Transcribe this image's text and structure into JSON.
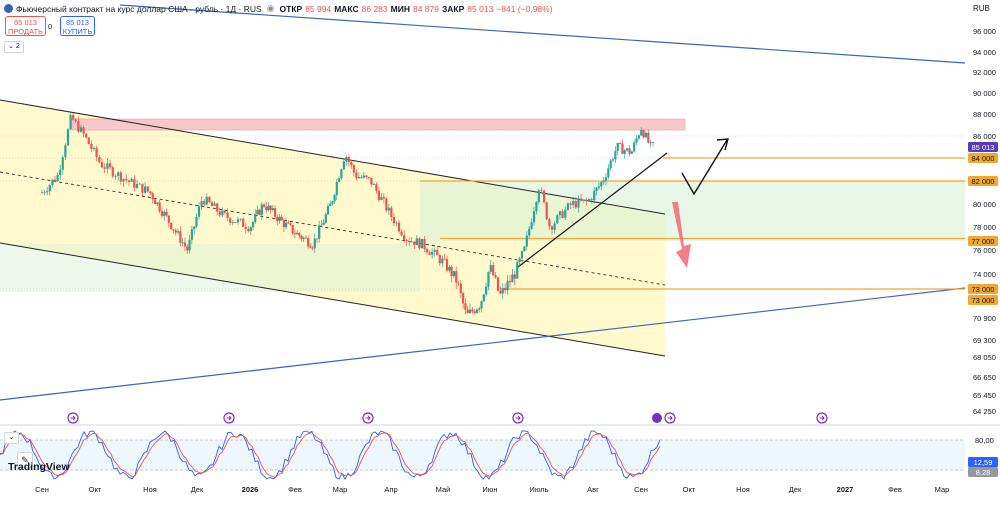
{
  "legend": {
    "title": "Фьючерсный контракт на курс доллар США - рубль · 1Д · RUS",
    "open_label": "ОТКР",
    "open": "85 994",
    "high_label": "МАКС",
    "high": "86 283",
    "low_label": "МИН",
    "low": "84 879",
    "close_label": "ЗАКР",
    "close": "85 013",
    "change": "−841 (−0,98%)"
  },
  "trade": {
    "sell_price": "85 013",
    "sell_label": "ПРОДАТЬ",
    "spread": "0",
    "buy_price": "85 013",
    "buy_label": "КУПИТЬ"
  },
  "indicator_count": "2",
  "currency": "RUB",
  "logo": "TradingView",
  "colors": {
    "up": "#26a69a",
    "down": "#ef5350",
    "channel_fill": "#fff8c4",
    "channel_green": "#d9f0d6",
    "resistance_zone": "#f8c7c9",
    "level": "#f0a830",
    "trendline_blue": "#3a65b6",
    "current_price": "#5b3bb5",
    "stoch_k": "#2962ff",
    "stoch_d": "#ef5350"
  },
  "chart_data": {
    "type": "candlestick",
    "price_axis": {
      "ticks": [
        "96 000",
        "94 000",
        "92 000",
        "90 000",
        "88 000",
        "86 000",
        "84 000",
        "82 000",
        "80 000",
        "78 000",
        "76 000",
        "74 000",
        "73 000",
        "70 900",
        "69 300",
        "68 050",
        "66 650",
        "65 450",
        "64 250"
      ],
      "current_price_label": "85 013",
      "level_labels": [
        "84 000",
        "82 000",
        "77 000",
        "73 000",
        "73 000"
      ]
    },
    "time_axis": {
      "labels": [
        "Сен",
        "Окт",
        "Ноя",
        "Дек",
        "2026",
        "Фев",
        "Мар",
        "Апр",
        "Май",
        "Июн",
        "Июль",
        "Авг",
        "Сен",
        "Окт",
        "Ноя",
        "Дек",
        "2027",
        "Фев",
        "Мар"
      ]
    },
    "oscillator": {
      "levels": [
        "80,00",
        "20,00"
      ],
      "values": [
        "12,59",
        "8,28"
      ]
    },
    "price_path": [
      {
        "month": "Сен 2025",
        "close": 81000
      },
      {
        "month": "Окт 2025",
        "high": 87600,
        "close": 83500
      },
      {
        "month": "Ноя 2025",
        "close": 81500
      },
      {
        "month": "Дек 2025",
        "close": 78000
      },
      {
        "month": "Янв 2026",
        "close": 80000
      },
      {
        "month": "Фев 2026",
        "close": 77000
      },
      {
        "month": "Мар 2026",
        "high": 84500,
        "close": 83000
      },
      {
        "month": "Апр 2026",
        "close": 77500
      },
      {
        "month": "Май 2026",
        "low": 70800,
        "close": 72000
      },
      {
        "month": "Июн 2026",
        "close": 75000
      },
      {
        "month": "Июль 2026",
        "high": 81600,
        "close": 79000
      },
      {
        "month": "Авг 2026",
        "close": 84000
      },
      {
        "month": "Сен 2026",
        "high": 86283,
        "close": 85013
      }
    ],
    "levels": [
      84000,
      82000,
      77000,
      73000
    ],
    "grid": false
  }
}
